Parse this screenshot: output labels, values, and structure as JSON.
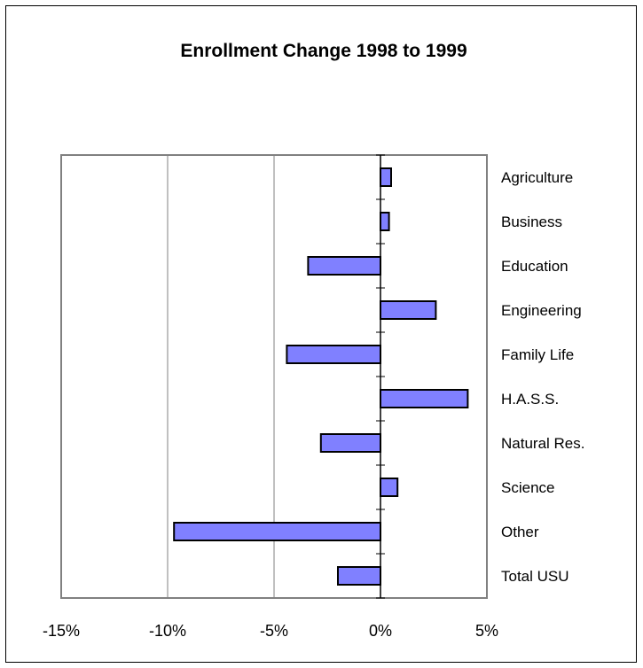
{
  "chart_data": {
    "type": "bar",
    "orientation": "horizontal",
    "title": "Enrollment Change 1998 to 1999",
    "xlabel": "",
    "ylabel": "",
    "xlim": [
      -0.15,
      0.05
    ],
    "x_ticks": [
      -0.15,
      -0.1,
      -0.05,
      0,
      0.05
    ],
    "x_tick_labels": [
      "-15%",
      "-10%",
      "-5%",
      "0%",
      "5%"
    ],
    "grid": "vertical major gridlines",
    "legend": "none",
    "category_label_position": "right",
    "bar_color": "#8080ff",
    "categories": [
      "Agriculture",
      "Business",
      "Education",
      "Engineering",
      "Family Life",
      "H.A.S.S.",
      "Natural Res.",
      "Science",
      "Other",
      "Total USU"
    ],
    "values": [
      0.005,
      0.004,
      -0.034,
      0.026,
      -0.044,
      0.041,
      -0.028,
      0.008,
      -0.097,
      -0.02
    ]
  }
}
